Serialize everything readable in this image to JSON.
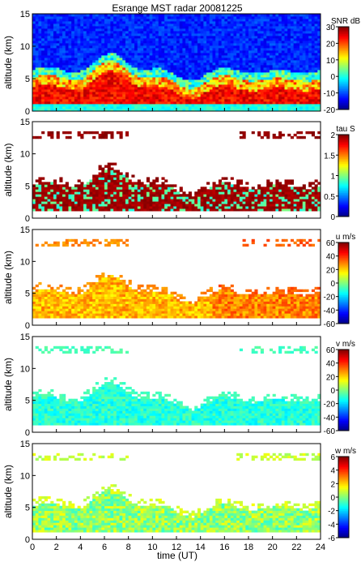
{
  "title": "Esrange MST radar 20081225",
  "xlabel": "time (UT)",
  "chart_data": [
    {
      "type": "heatmap",
      "ylabel": "altitude (km)",
      "colorbar_label": "SNR dB",
      "x_range": [
        0,
        24
      ],
      "y_range": [
        0,
        15
      ],
      "x_ticks": [
        0,
        2,
        4,
        6,
        8,
        10,
        12,
        14,
        16,
        18,
        20,
        22,
        24
      ],
      "y_ticks": [
        0,
        5,
        10,
        15
      ],
      "colorbar_range": [
        -20,
        30
      ],
      "colorbar_ticks": [
        30,
        20,
        10,
        0,
        -10,
        -20
      ],
      "grid": false
    },
    {
      "type": "heatmap",
      "ylabel": "altitude (km)",
      "colorbar_label": "tau S",
      "x_range": [
        0,
        24
      ],
      "y_range": [
        0,
        15
      ],
      "x_ticks": [
        0,
        2,
        4,
        6,
        8,
        10,
        12,
        14,
        16,
        18,
        20,
        22,
        24
      ],
      "y_ticks": [
        0,
        5,
        10,
        15
      ],
      "colorbar_range": [
        0,
        2
      ],
      "colorbar_ticks": [
        2,
        1.5,
        1,
        0.5,
        0
      ],
      "grid": false
    },
    {
      "type": "heatmap",
      "ylabel": "altitude (km)",
      "colorbar_label": "u m/s",
      "x_range": [
        0,
        24
      ],
      "y_range": [
        0,
        15
      ],
      "x_ticks": [
        0,
        2,
        4,
        6,
        8,
        10,
        12,
        14,
        16,
        18,
        20,
        22,
        24
      ],
      "y_ticks": [
        0,
        5,
        10,
        15
      ],
      "colorbar_range": [
        -60,
        60
      ],
      "colorbar_ticks": [
        60,
        40,
        20,
        0,
        -20,
        -40,
        -60
      ],
      "grid": false
    },
    {
      "type": "heatmap",
      "ylabel": "altitude (km)",
      "colorbar_label": "v m/s",
      "x_range": [
        0,
        24
      ],
      "y_range": [
        0,
        15
      ],
      "x_ticks": [
        0,
        2,
        4,
        6,
        8,
        10,
        12,
        14,
        16,
        18,
        20,
        22,
        24
      ],
      "y_ticks": [
        0,
        5,
        10,
        15
      ],
      "colorbar_range": [
        -60,
        60
      ],
      "colorbar_ticks": [
        60,
        40,
        20,
        0,
        -20,
        -40,
        -60
      ],
      "grid": false
    },
    {
      "type": "heatmap",
      "ylabel": "altitude (km)",
      "colorbar_label": "w m/s",
      "x_range": [
        0,
        24
      ],
      "y_range": [
        0,
        15
      ],
      "x_ticks": [
        0,
        2,
        4,
        6,
        8,
        10,
        12,
        14,
        16,
        18,
        20,
        22,
        24
      ],
      "y_ticks": [
        0,
        5,
        10,
        15
      ],
      "colorbar_range": [
        -6,
        6
      ],
      "colorbar_ticks": [
        6,
        4,
        2,
        0,
        -2,
        -4,
        -6
      ],
      "grid": false
    }
  ]
}
